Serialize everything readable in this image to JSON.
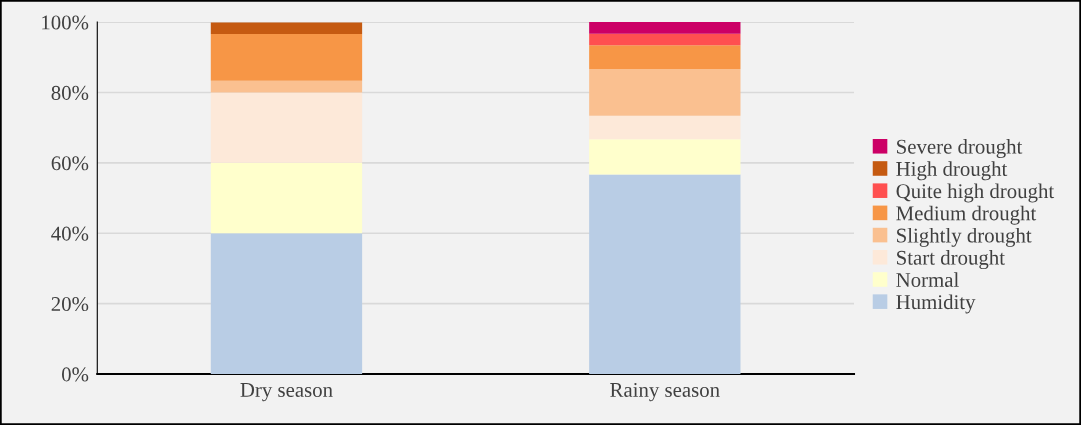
{
  "chart_data": {
    "type": "bar",
    "stacked": true,
    "categories": [
      "Dry season",
      "Rainy season"
    ],
    "series": [
      {
        "name": "Humidity",
        "color": "#b9cde5",
        "values": [
          40,
          56.7
        ]
      },
      {
        "name": "Normal",
        "color": "#ffffcc",
        "values": [
          20,
          10
        ]
      },
      {
        "name": "Start drought",
        "color": "#fde9d9",
        "values": [
          20,
          6.7
        ]
      },
      {
        "name": "Slightly drought",
        "color": "#fac090",
        "values": [
          3.3,
          13.3
        ]
      },
      {
        "name": "Medium drought",
        "color": "#f79646",
        "values": [
          13.3,
          6.7
        ]
      },
      {
        "name": "Quite high drought",
        "color": "#ff5050",
        "values": [
          0,
          3.3
        ]
      },
      {
        "name": "High drought",
        "color": "#c55a11",
        "values": [
          3.3,
          0
        ]
      },
      {
        "name": "Severe drought",
        "color": "#cc0066",
        "values": [
          0,
          3.3
        ]
      }
    ],
    "ylim": [
      0,
      100
    ],
    "yticks": [
      {
        "value": 0,
        "label": "0%"
      },
      {
        "value": 20,
        "label": "20%"
      },
      {
        "value": 40,
        "label": "40%"
      },
      {
        "value": 60,
        "label": "60%"
      },
      {
        "value": 80,
        "label": "80%"
      },
      {
        "value": 100,
        "label": "100%"
      }
    ],
    "grid": "y",
    "legend": "right"
  }
}
